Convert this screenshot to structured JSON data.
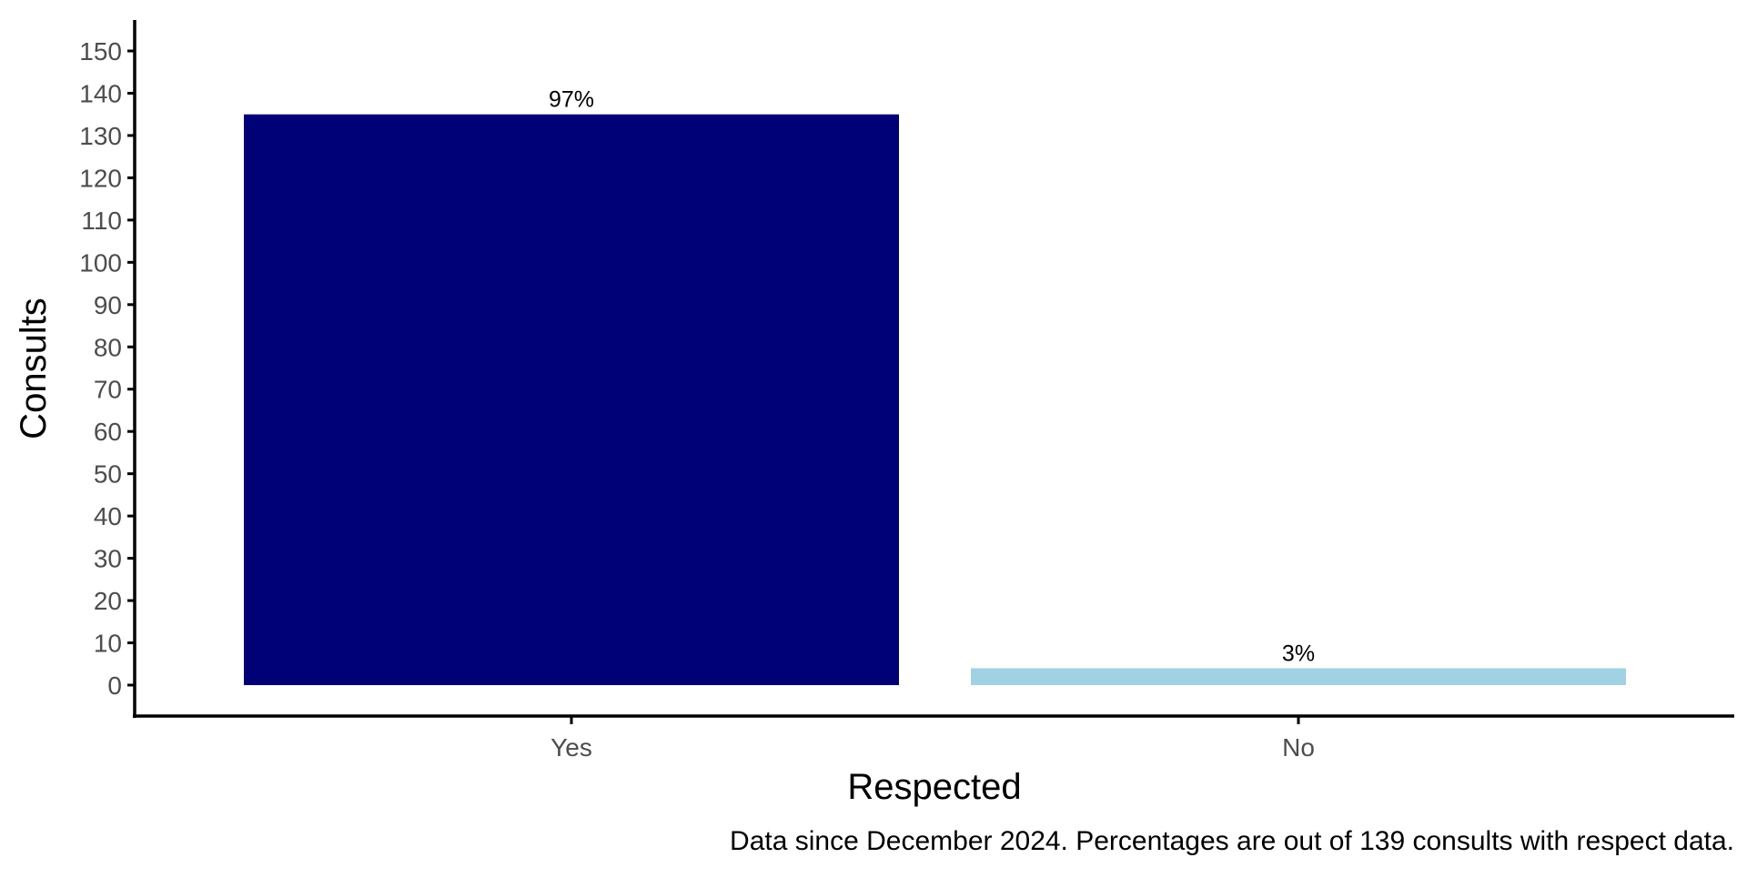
{
  "chart_data": {
    "type": "bar",
    "xlabel": "Respected",
    "ylabel": "Consults",
    "caption": "Data since December 2024. Percentages are out of 139 consults with respect data.",
    "categories": [
      "Yes",
      "No"
    ],
    "values": [
      135,
      4
    ],
    "data_labels": [
      "97%",
      "3%"
    ],
    "colors": [
      "#000077",
      "#a1d2e3"
    ],
    "ylim": [
      0,
      150
    ],
    "y_ticks": [
      0,
      10,
      20,
      30,
      40,
      50,
      60,
      70,
      80,
      90,
      100,
      110,
      120,
      130,
      140,
      150
    ],
    "grid": false,
    "legend": "none"
  }
}
